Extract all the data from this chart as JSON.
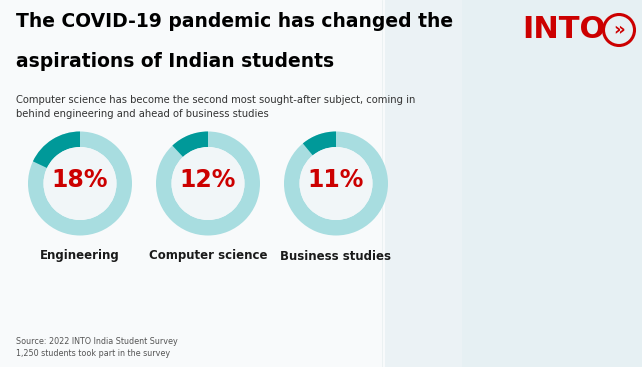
{
  "title_line1": "The COVID-19 pandemic has changed the",
  "title_line2": "aspirations of Indian students",
  "subtitle": "Computer science has become the second most sought-after subject, coming in\nbehind engineering and ahead of business studies",
  "source_text": "Source: 2022 INTO India Student Survey\n1,250 students took part in the survey",
  "bg_color": "#f0f6f8",
  "pie_data": [
    {
      "value": 18,
      "label": "Engineering"
    },
    {
      "value": 12,
      "label": "Computer science"
    },
    {
      "value": 11,
      "label": "Business studies"
    }
  ],
  "pie_light_color": "#a8dde0",
  "pie_dark_color": "#009999",
  "pct_color": "#cc0000",
  "label_color": "#1a1a1a",
  "title_color": "#000000",
  "subtitle_color": "#333333",
  "logo_color": "#cc0000",
  "fig_width": 6.42,
  "fig_height": 3.67,
  "dpi": 100
}
